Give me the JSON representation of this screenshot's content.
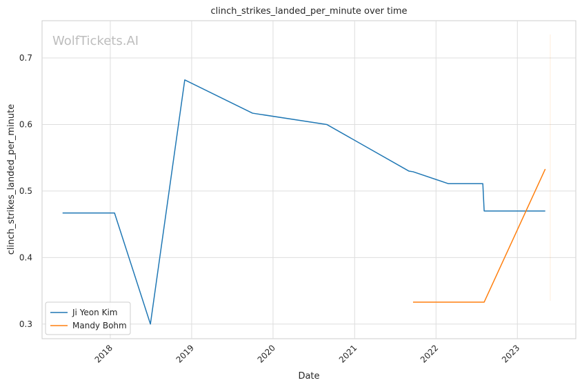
{
  "chart_data": {
    "type": "line",
    "title": "clinch_strikes_landed_per_minute over time",
    "xlabel": "Date",
    "ylabel": "clinch_strikes_landed_per_minute",
    "watermark": "WolfTickets.AI",
    "x_ticks": [
      "2018",
      "2019",
      "2020",
      "2021",
      "2022",
      "2023"
    ],
    "y_ticks": [
      "0.3",
      "0.4",
      "0.5",
      "0.6",
      "0.7"
    ],
    "xlim": [
      "2017-03-01",
      "2023-09-20"
    ],
    "ylim": [
      0.278,
      0.756
    ],
    "grid": true,
    "legend_position": "lower-left",
    "series": [
      {
        "name": "Ji Yeon Kim",
        "color": "#1f77b4",
        "x": [
          "2017-06-01",
          "2018-01-20",
          "2018-06-30",
          "2018-12-01",
          "2019-10-01",
          "2020-08-29",
          "2021-09-01",
          "2021-09-20",
          "2022-02-26",
          "2022-07-30",
          "2022-08-05",
          "2023-05-06"
        ],
        "y": [
          0.467,
          0.467,
          0.3,
          0.667,
          0.617,
          0.6,
          0.53,
          0.529,
          0.511,
          0.511,
          0.47,
          0.47
        ]
      },
      {
        "name": "Mandy Bohm",
        "color": "#ff7f0e",
        "x": [
          "2021-09-20",
          "2022-08-05",
          "2023-05-06"
        ],
        "y": [
          0.333,
          0.333,
          0.533
        ]
      }
    ]
  }
}
